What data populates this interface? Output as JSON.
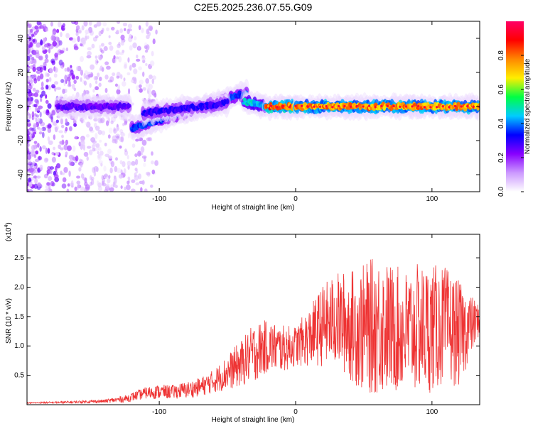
{
  "page_title": "C2E5.2025.236.07.55.G09",
  "colors": {
    "snr_line": "#ee3333",
    "colormap": [
      "#ffffff",
      "#cc99ff",
      "#8800ff",
      "#0000ff",
      "#00ccff",
      "#00ff44",
      "#ffee00",
      "#ff8800",
      "#ff0000",
      "#ff0066"
    ]
  },
  "chart_data": [
    {
      "type": "heatmap",
      "name": "spectrogram",
      "xlabel": "Height of straight line (km)",
      "ylabel": "Frequency (Hz)",
      "xlim": [
        -197,
        135
      ],
      "ylim": [
        -50,
        50
      ],
      "xticks": [
        -100,
        0,
        100
      ],
      "xtick_labels": [
        "-100",
        "0",
        "100"
      ],
      "yticks": [
        -40,
        -20,
        0,
        20,
        40
      ],
      "ytick_labels": [
        "-40",
        "-20",
        "0",
        "20",
        "40"
      ],
      "colorbar": {
        "label": "Normalized spectral amplitude",
        "range": [
          0,
          1
        ],
        "ticks": [
          0.0,
          0.2,
          0.4,
          0.6,
          0.8
        ],
        "tick_labels": [
          "0.0",
          "0.2",
          "0.4",
          "0.6",
          "0.8"
        ]
      },
      "ridge_segments": [
        {
          "x_start": -175,
          "x_end": -122,
          "y_start": 0,
          "y_end": 0,
          "amplitude": 0.25
        },
        {
          "x_start": -120,
          "x_end": -36,
          "y_start": -13,
          "y_end": 8,
          "amplitude": 0.35
        },
        {
          "x_start": -112,
          "x_end": -50,
          "y_start": -4,
          "y_end": 2,
          "amplitude": 0.3
        },
        {
          "x_start": -38,
          "x_end": -22,
          "y_start": 3,
          "y_end": 0,
          "amplitude": 0.45
        },
        {
          "x_start": -22,
          "x_end": 0,
          "y_start": 0,
          "y_end": 0,
          "amplitude": 0.8
        },
        {
          "x_start": 0,
          "x_end": 135,
          "y_start": 0,
          "y_end": 0,
          "amplitude": 0.75
        }
      ]
    },
    {
      "type": "line",
      "name": "snr",
      "xlabel": "Height of straight line (km)",
      "ylabel": "SNR (10 * v/v)",
      "y_multiplier_label": "(x10",
      "y_multiplier_exp": "4",
      "y_multiplier_close": ")",
      "xlim": [
        -197,
        135
      ],
      "ylim": [
        0,
        2.9
      ],
      "xticks": [
        -100,
        0,
        100
      ],
      "xtick_labels": [
        "-100",
        "0",
        "100"
      ],
      "yticks": [
        0.5,
        1.0,
        1.5,
        2.0,
        2.5
      ],
      "ytick_labels": [
        "0.5",
        "1.0",
        "1.5",
        "2.0",
        "2.5"
      ],
      "series": [
        {
          "name": "SNR",
          "x": [
            -197,
            -170,
            -140,
            -125,
            -110,
            -100,
            -90,
            -80,
            -70,
            -60,
            -50,
            -40,
            -30,
            -20,
            -10,
            0,
            10,
            20,
            30,
            40,
            50,
            60,
            70,
            80,
            90,
            100,
            110,
            120,
            135
          ],
          "y": [
            0.03,
            0.04,
            0.06,
            0.1,
            0.2,
            0.22,
            0.22,
            0.25,
            0.3,
            0.4,
            0.55,
            0.7,
            0.9,
            1.0,
            0.95,
            1.0,
            1.15,
            1.35,
            1.45,
            1.35,
            1.3,
            1.35,
            1.3,
            1.25,
            1.3,
            1.3,
            1.35,
            1.2,
            1.45
          ],
          "spread": [
            0.01,
            0.02,
            0.03,
            0.06,
            0.1,
            0.12,
            0.12,
            0.14,
            0.16,
            0.2,
            0.3,
            0.4,
            0.5,
            0.45,
            0.4,
            0.35,
            0.5,
            0.7,
            0.8,
            0.95,
            1.1,
            1.2,
            1.1,
            1.05,
            1.1,
            1.1,
            1.0,
            0.9,
            0.25
          ]
        }
      ]
    }
  ]
}
